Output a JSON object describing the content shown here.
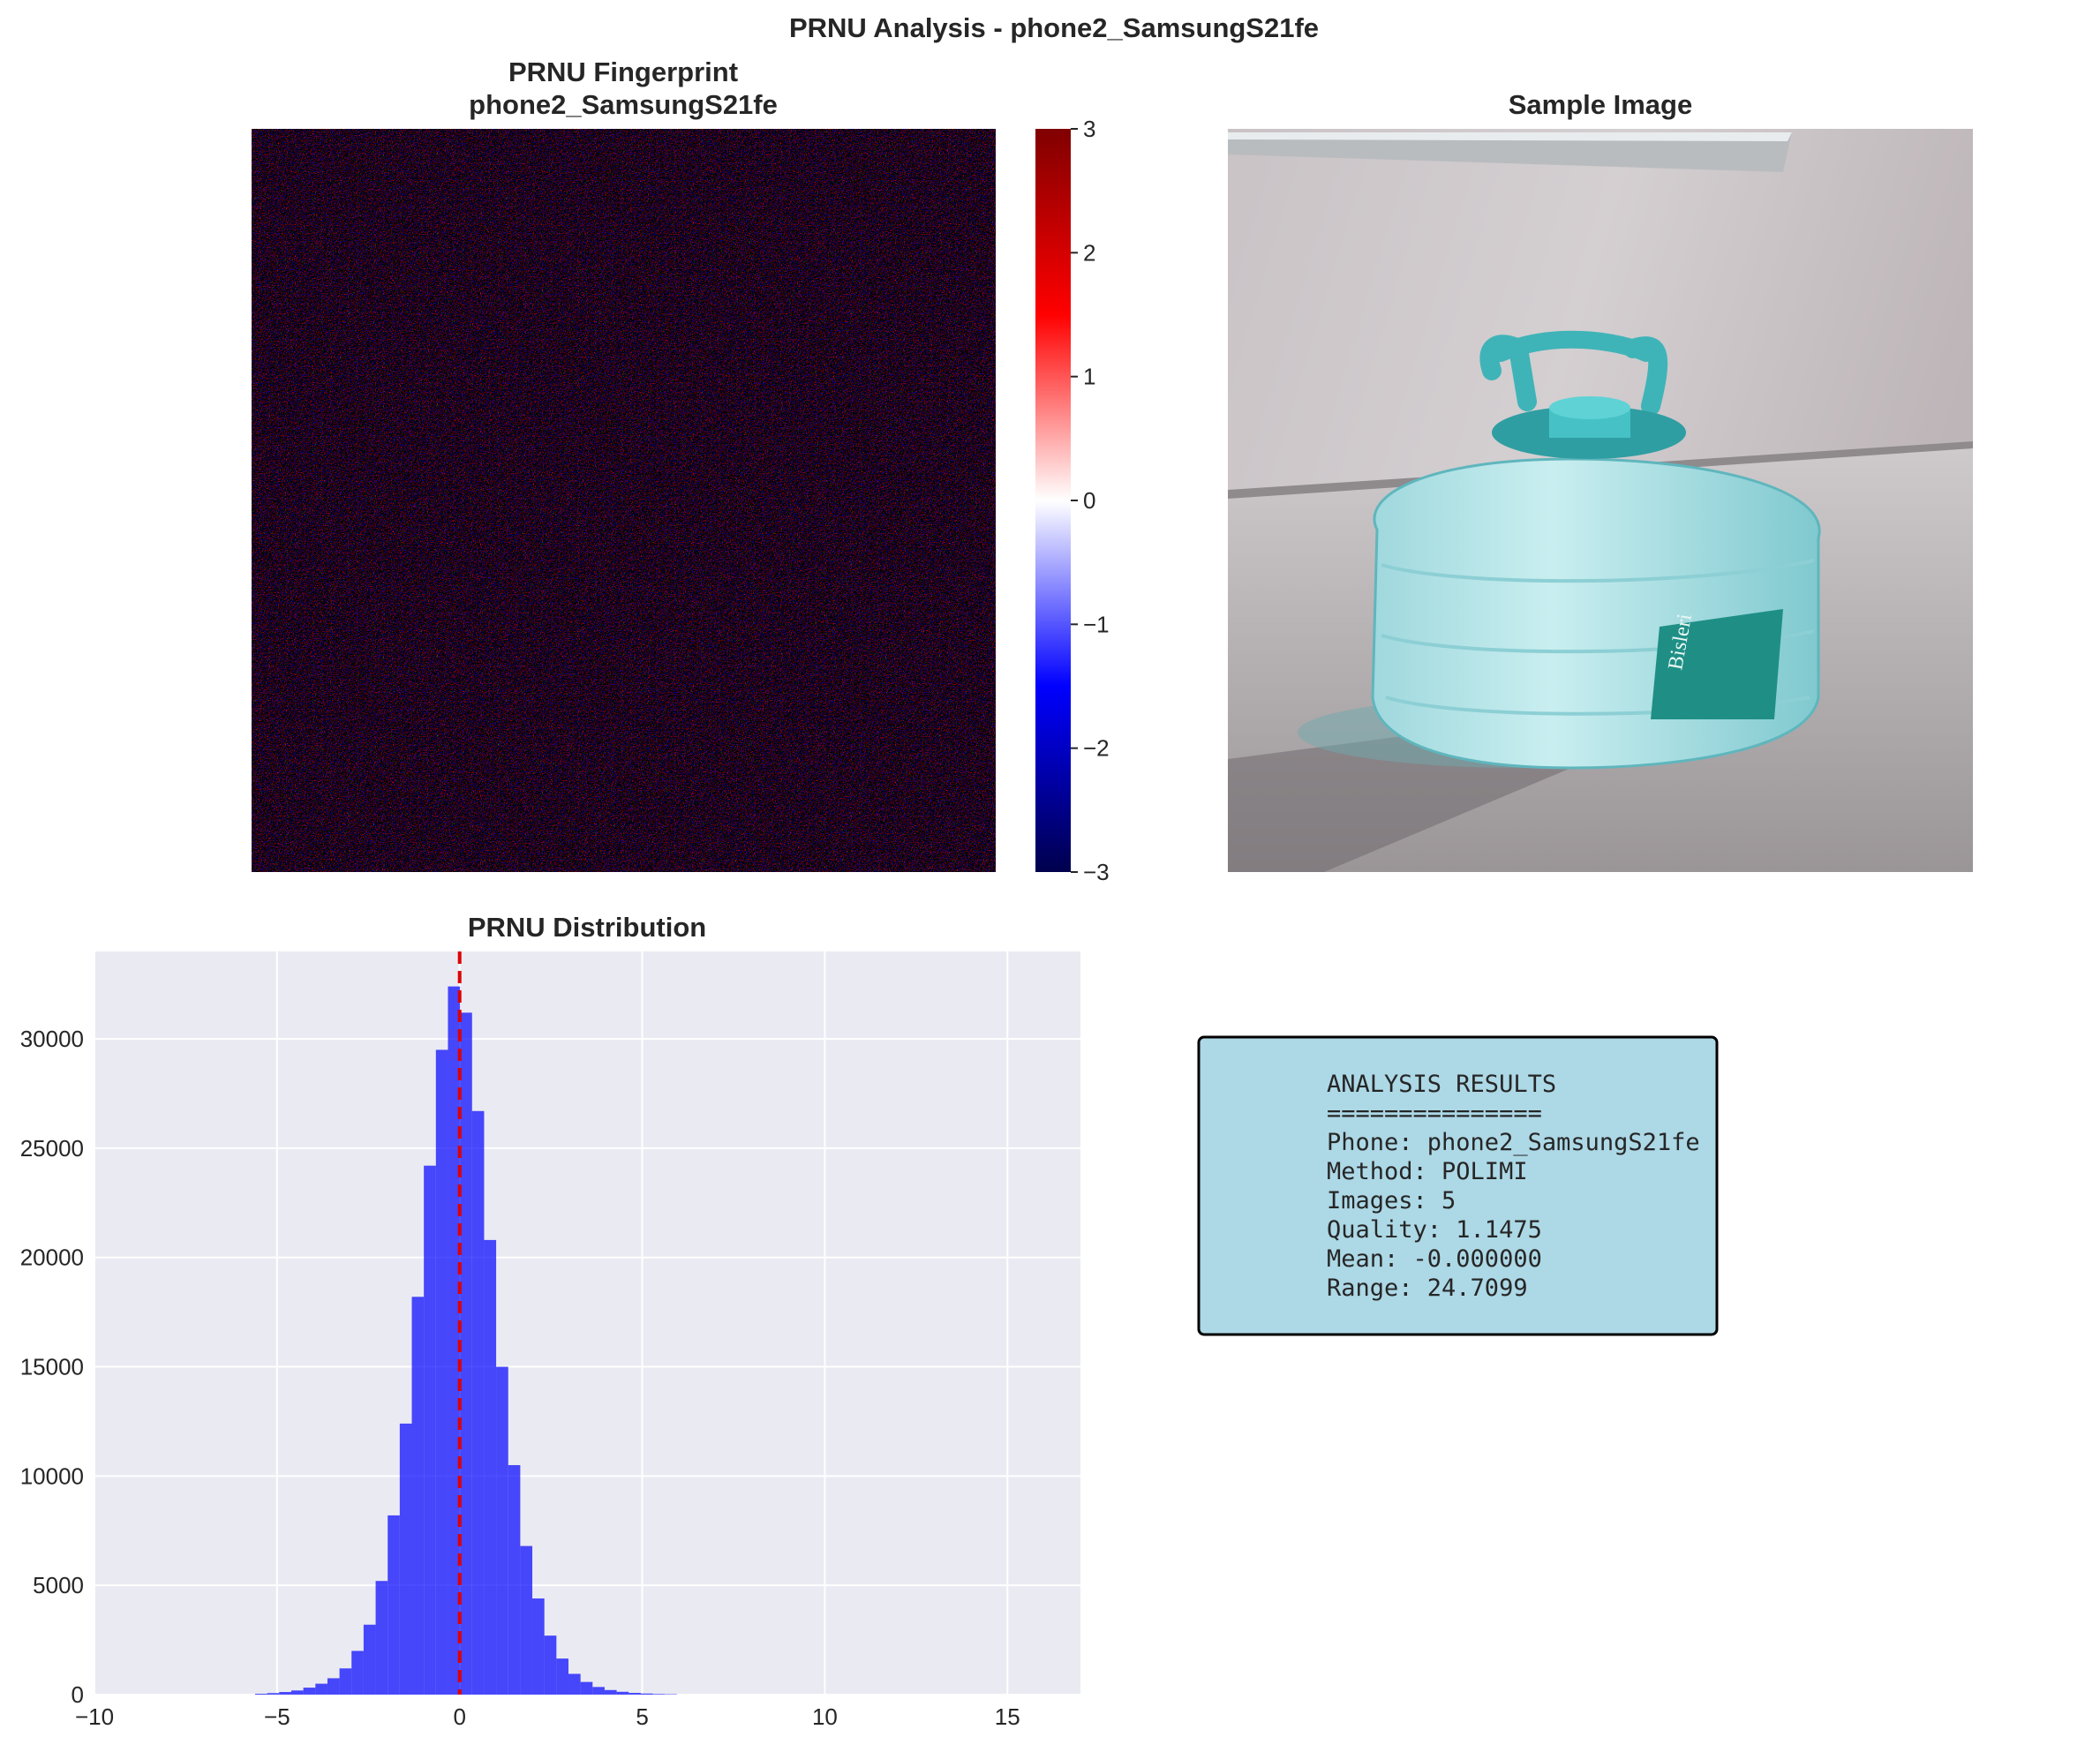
{
  "figure": {
    "suptitle": "PRNU Analysis - phone2_SamsungS21fe"
  },
  "fingerprint_panel": {
    "title_line1": "PRNU Fingerprint",
    "title_line2": "phone2_SamsungS21fe",
    "colormap": "seismic",
    "colorbar_ticks": [
      "3",
      "2",
      "1",
      "0",
      "−1",
      "−2",
      "−3"
    ],
    "colorbar_range": [
      -3,
      3
    ],
    "colors": {
      "high": "#800000",
      "mid": "#ffffff",
      "low": "#00004d"
    }
  },
  "sample_panel": {
    "title": "Sample Image",
    "bottle_label_text": "Bisleri"
  },
  "results_panel": {
    "lines": [
      "ANALYSIS RESULTS",
      "===============",
      "Phone: phone2_SamsungS21fe",
      "Method: POLIMI",
      "Images: 5",
      "Quality: 1.1475",
      "Mean: -0.000000",
      "Range: 24.7099"
    ],
    "colors": {
      "background": "#add8e6",
      "border": "#000000"
    }
  },
  "chart_data": {
    "type": "bar",
    "title": "PRNU Distribution",
    "xlabel": "",
    "ylabel": "",
    "xlim": [
      -10,
      17
    ],
    "ylim": [
      0,
      34000
    ],
    "x_ticks": [
      -10,
      -5,
      0,
      5,
      10,
      15
    ],
    "x_tick_labels": [
      "−10",
      "−5",
      "0",
      "5",
      "10",
      "15"
    ],
    "y_ticks": [
      0,
      5000,
      10000,
      15000,
      20000,
      25000,
      30000
    ],
    "y_tick_labels": [
      "0",
      "5000",
      "10000",
      "15000",
      "20000",
      "25000",
      "30000"
    ],
    "grid": true,
    "bin_width": 0.33,
    "bin_lefts": [
      -5.6,
      -5.27,
      -4.94,
      -4.61,
      -4.28,
      -3.95,
      -3.62,
      -3.29,
      -2.96,
      -2.63,
      -2.3,
      -1.97,
      -1.64,
      -1.31,
      -0.98,
      -0.65,
      -0.32,
      0.01,
      0.34,
      0.67,
      1.0,
      1.33,
      1.66,
      1.99,
      2.32,
      2.65,
      2.98,
      3.31,
      3.64,
      3.97,
      4.3,
      4.63,
      4.96,
      5.29,
      5.62
    ],
    "values": [
      40,
      70,
      120,
      190,
      320,
      500,
      750,
      1200,
      2000,
      3200,
      5200,
      8200,
      12400,
      18200,
      24200,
      29500,
      32400,
      31200,
      26700,
      20800,
      15000,
      10500,
      6800,
      4400,
      2700,
      1650,
      950,
      580,
      350,
      210,
      130,
      80,
      50,
      30,
      20
    ],
    "mean_line_x": 0,
    "colors": {
      "bars": "#0000ff",
      "mean_line": "#dd0000",
      "axes_bg": "#eaeaf2",
      "grid": "#ffffff"
    }
  }
}
